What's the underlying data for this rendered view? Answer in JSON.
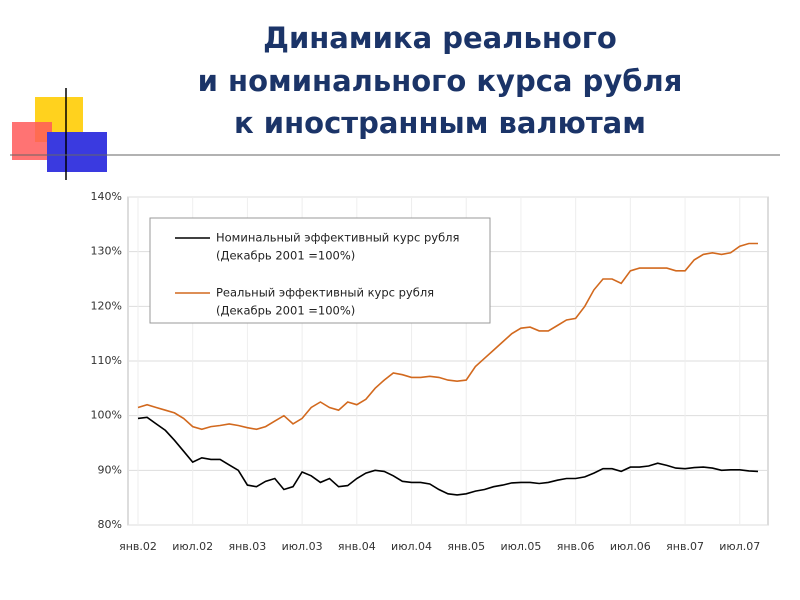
{
  "chart_data": {
    "type": "line",
    "title": [
      "Динамика реального",
      "и номинального курса рубля",
      "к иностранным валютам"
    ],
    "categories": [
      "янв.02",
      null,
      null,
      null,
      null,
      null,
      "июл.02",
      null,
      null,
      null,
      null,
      null,
      "янв.03",
      null,
      null,
      null,
      null,
      null,
      "июл.03",
      null,
      null,
      null,
      null,
      null,
      "янв.04",
      null,
      null,
      null,
      null,
      null,
      "июл.04",
      null,
      null,
      null,
      null,
      null,
      "янв.05",
      null,
      null,
      null,
      null,
      null,
      "июл.05",
      null,
      null,
      null,
      null,
      null,
      "янв.06",
      null,
      null,
      null,
      null,
      null,
      "июл.06",
      null,
      null,
      null,
      null,
      null,
      "янв.07",
      null,
      null,
      null,
      null,
      null,
      "июл.07",
      null,
      null
    ],
    "series": [
      {
        "name": "Номинальный эффективный курс рубля",
        "unit_label": "(Декабрь 2001 =100%)",
        "color": "#000000",
        "values": [
          99.5,
          99.7,
          98.5,
          97.3,
          95.5,
          93.5,
          91.5,
          92.3,
          92.0,
          92.0,
          91.0,
          90.0,
          87.3,
          87.0,
          88.0,
          88.5,
          86.5,
          87.0,
          89.7,
          89.0,
          87.8,
          88.5,
          87.0,
          87.2,
          88.5,
          89.5,
          90.0,
          89.8,
          89.0,
          88.0,
          87.8,
          87.8,
          87.5,
          86.5,
          85.7,
          85.5,
          85.7,
          86.2,
          86.5,
          87.0,
          87.3,
          87.7,
          87.8,
          87.8,
          87.6,
          87.8,
          88.2,
          88.5,
          88.5,
          88.8,
          89.5,
          90.3,
          90.3,
          89.8,
          90.6,
          90.6,
          90.8,
          91.3,
          90.9,
          90.4,
          90.3,
          90.5,
          90.6,
          90.4,
          90.0,
          90.1,
          90.1,
          89.9,
          89.8
        ]
      },
      {
        "name": "Реальный эффективный курс рубля",
        "unit_label": "(Декабрь 2001 =100%)",
        "color": "#d2691e",
        "values": [
          101.5,
          102.0,
          101.5,
          101.0,
          100.5,
          99.5,
          98.0,
          97.5,
          98.0,
          98.2,
          98.5,
          98.2,
          97.8,
          97.5,
          98.0,
          99.0,
          100.0,
          98.5,
          99.5,
          101.5,
          102.5,
          101.5,
          101.0,
          102.5,
          102.0,
          103.0,
          105.0,
          106.5,
          107.8,
          107.5,
          107.0,
          107.0,
          107.2,
          107.0,
          106.5,
          106.3,
          106.5,
          109.0,
          110.5,
          112.0,
          113.5,
          115.0,
          116.0,
          116.2,
          115.5,
          115.5,
          116.5,
          117.5,
          117.8,
          120.0,
          123.0,
          125.0,
          125.0,
          124.2,
          126.5,
          127.0,
          127.0,
          127.0,
          127.0,
          126.5,
          126.5,
          128.5,
          129.5,
          129.8,
          129.5,
          129.8,
          131.0,
          131.5,
          131.5
        ]
      }
    ],
    "ylim": [
      80,
      140
    ],
    "yticks": [
      {
        "value": 80,
        "label": "80%"
      },
      {
        "value": 90,
        "label": "90%"
      },
      {
        "value": 100,
        "label": "100%"
      },
      {
        "value": 110,
        "label": "110%"
      },
      {
        "value": 120,
        "label": "120%"
      },
      {
        "value": 130,
        "label": "130%"
      },
      {
        "value": 140,
        "label": "140%"
      }
    ],
    "grid": true
  }
}
